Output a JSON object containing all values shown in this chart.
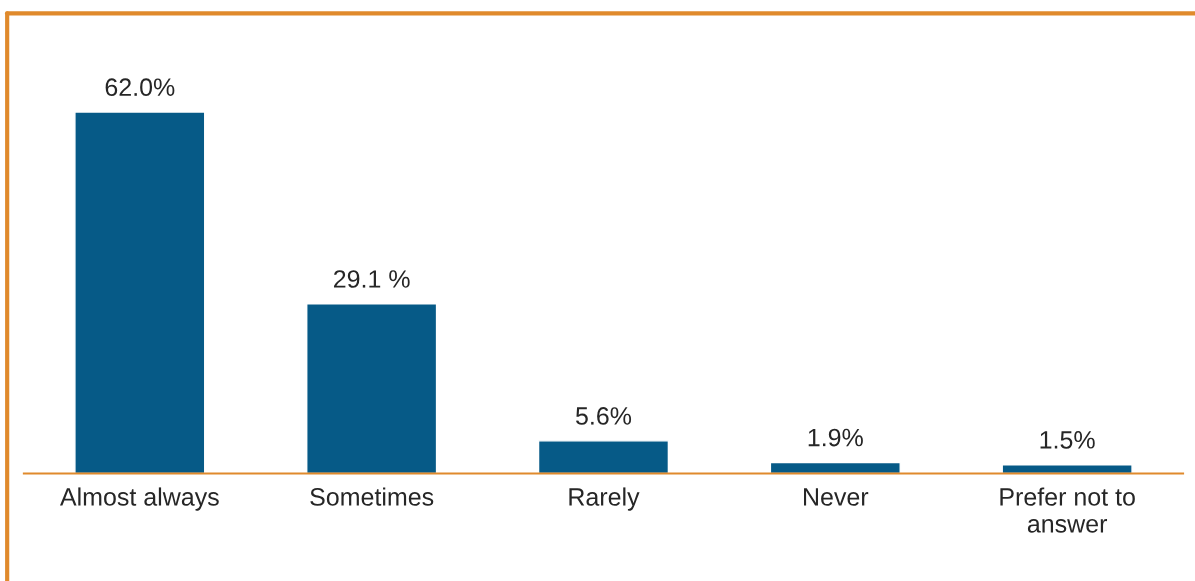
{
  "chart_data": {
    "type": "bar",
    "categories": [
      "Almost always",
      "Sometimes",
      "Rarely",
      "Never",
      "Prefer not to\nanswer"
    ],
    "values": [
      62.0,
      29.1,
      5.6,
      1.9,
      1.5
    ],
    "value_labels": [
      "62.0%",
      "29.1 %",
      "5.6%",
      "1.9%",
      "1.5%"
    ],
    "color": "#065a87",
    "tick_labels": "x",
    "grid": false,
    "legend": false
  }
}
